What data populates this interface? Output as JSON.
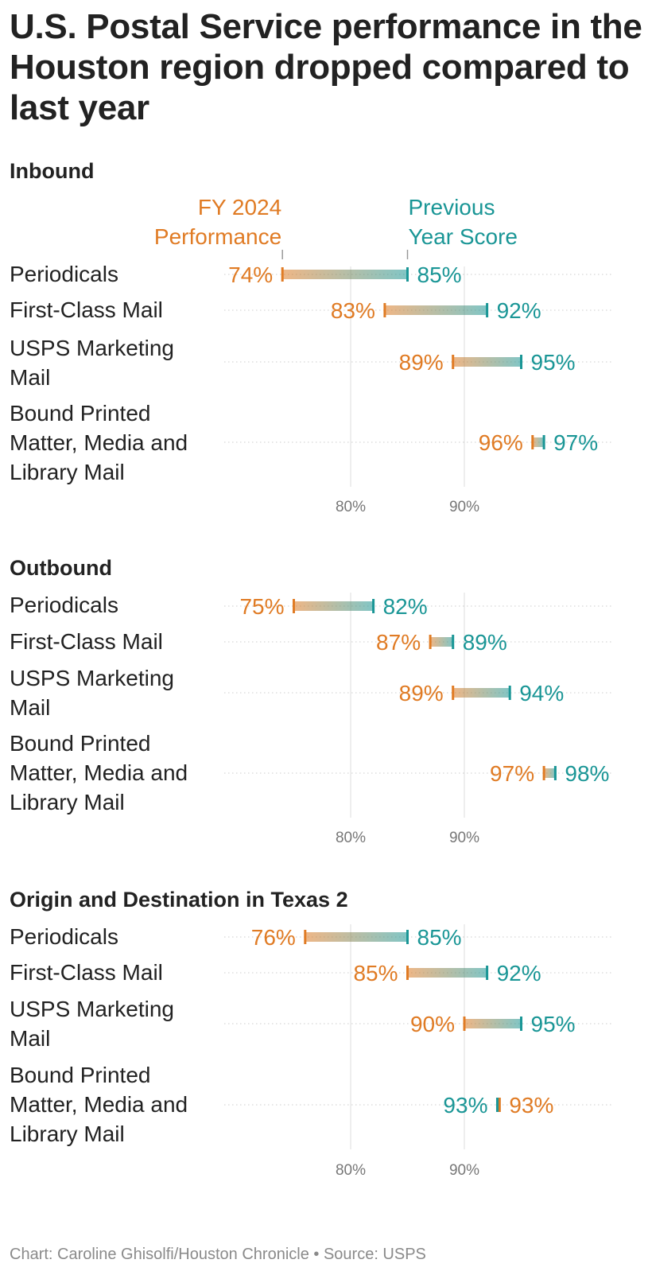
{
  "title": "U.S. Postal Service performance in the Houston region dropped compared to last year",
  "source": "Chart: Caroline Ghisolfi/Houston Chronicle • Source: USPS",
  "colors": {
    "fy2024": "#e07b24",
    "previous": "#1a9696",
    "grid": "#dddddd",
    "axis_text": "#777777"
  },
  "legend": {
    "fy2024": [
      "FY 2024",
      "Performance"
    ],
    "previous": [
      "Previous",
      "Year Score"
    ]
  },
  "chart_data": [
    {
      "type": "dumbbell",
      "title": "Inbound",
      "series_names": [
        "FY 2024 Performance",
        "Previous Year Score"
      ],
      "xlim": [
        80,
        90
      ],
      "xticks": [
        80,
        90
      ],
      "xtick_labels": [
        "80%",
        "90%"
      ],
      "rows": [
        {
          "label": "Periodicals",
          "fy2024": 74,
          "previous": 85,
          "fy2024_label": "74%",
          "previous_label": "85%"
        },
        {
          "label": "First-Class Mail",
          "fy2024": 83,
          "previous": 92,
          "fy2024_label": "83%",
          "previous_label": "92%"
        },
        {
          "label": "USPS Marketing Mail",
          "fy2024": 89,
          "previous": 95,
          "fy2024_label": "89%",
          "previous_label": "95%"
        },
        {
          "label": "Bound Printed Matter, Media and Library Mail",
          "fy2024": 96,
          "previous": 97,
          "fy2024_label": "96%",
          "previous_label": "97%"
        }
      ]
    },
    {
      "type": "dumbbell",
      "title": "Outbound",
      "xlim": [
        80,
        90
      ],
      "xticks": [
        80,
        90
      ],
      "xtick_labels": [
        "80%",
        "90%"
      ],
      "rows": [
        {
          "label": "Periodicals",
          "fy2024": 75,
          "previous": 82,
          "fy2024_label": "75%",
          "previous_label": "82%"
        },
        {
          "label": "First-Class Mail",
          "fy2024": 87,
          "previous": 89,
          "fy2024_label": "87%",
          "previous_label": "89%"
        },
        {
          "label": "USPS Marketing Mail",
          "fy2024": 89,
          "previous": 94,
          "fy2024_label": "89%",
          "previous_label": "94%"
        },
        {
          "label": "Bound Printed Matter, Media and Library Mail",
          "fy2024": 97,
          "previous": 98,
          "fy2024_label": "97%",
          "previous_label": "98%"
        }
      ]
    },
    {
      "type": "dumbbell",
      "title": "Origin and Destination in Texas 2",
      "xlim": [
        80,
        90
      ],
      "xticks": [
        80,
        90
      ],
      "xtick_labels": [
        "80%",
        "90%"
      ],
      "rows": [
        {
          "label": "Periodicals",
          "fy2024": 76,
          "previous": 85,
          "fy2024_label": "76%",
          "previous_label": "85%"
        },
        {
          "label": "First-Class Mail",
          "fy2024": 85,
          "previous": 92,
          "fy2024_label": "85%",
          "previous_label": "92%"
        },
        {
          "label": "USPS Marketing Mail",
          "fy2024": 90,
          "previous": 95,
          "fy2024_label": "90%",
          "previous_label": "95%"
        },
        {
          "label": "Bound Printed Matter, Media and Library Mail",
          "fy2024": 93.1,
          "previous": 92.9,
          "fy2024_label": "93%",
          "previous_label": "93%"
        }
      ]
    }
  ]
}
